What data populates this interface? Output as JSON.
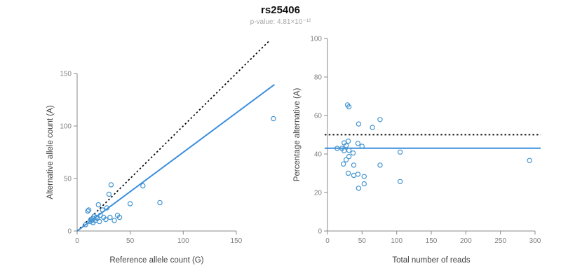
{
  "header": {
    "title": "rs25406",
    "subtitle": "p-value: 4.81×10⁻¹²"
  },
  "chart_data": [
    {
      "type": "scatter",
      "name": "allele-count-scatter",
      "xlabel": "Reference allele count (G)",
      "ylabel": "Alternative allele count (A)",
      "xlim": [
        0,
        186
      ],
      "ylim": [
        0,
        150
      ],
      "xticks": [
        0,
        50,
        100,
        150
      ],
      "yticks": [
        0,
        50,
        100,
        150
      ],
      "point_color": "#4495d1",
      "axis_color": "#888888",
      "tick_label_color": "#7f7f7f",
      "axis_label_color": "#404040",
      "points": [
        [
          8,
          6
        ],
        [
          10,
          19
        ],
        [
          11,
          20
        ],
        [
          12,
          9
        ],
        [
          13,
          11
        ],
        [
          14,
          10
        ],
        [
          15,
          12
        ],
        [
          15,
          8
        ],
        [
          16,
          14
        ],
        [
          17,
          10
        ],
        [
          18,
          13
        ],
        [
          19,
          12
        ],
        [
          20,
          25
        ],
        [
          21,
          9
        ],
        [
          22,
          15
        ],
        [
          24,
          20
        ],
        [
          25,
          13
        ],
        [
          27,
          11
        ],
        [
          28,
          22
        ],
        [
          30,
          35
        ],
        [
          31,
          13
        ],
        [
          32,
          44
        ],
        [
          35,
          10
        ],
        [
          38,
          15
        ],
        [
          40,
          13
        ],
        [
          50,
          26
        ],
        [
          62,
          43
        ],
        [
          78,
          27
        ],
        [
          185,
          107
        ]
      ],
      "lines": [
        {
          "kind": "abline",
          "name": "identity-line",
          "slope": 1,
          "intercept": 0,
          "color": "#000000",
          "dash": true
        },
        {
          "kind": "abline",
          "name": "fit-line",
          "slope": 0.75,
          "intercept": 0,
          "color": "#3b8ede",
          "dash": false
        }
      ]
    },
    {
      "type": "scatter",
      "name": "percentage-vs-reads-scatter",
      "xlabel": "Total number of reads",
      "ylabel": "Percentage alternative (A)",
      "xlim": [
        0,
        300
      ],
      "ylim": [
        0,
        100
      ],
      "xticks": [
        0,
        50,
        100,
        150,
        200,
        250,
        300
      ],
      "yticks": [
        0,
        20,
        40,
        60,
        80,
        100
      ],
      "point_color": "#4495d1",
      "axis_color": "#888888",
      "tick_label_color": "#7f7f7f",
      "axis_label_color": "#404040",
      "points": [
        [
          14,
          42.9
        ],
        [
          29,
          65.5
        ],
        [
          31,
          64.5
        ],
        [
          21,
          42.9
        ],
        [
          24,
          45.8
        ],
        [
          24,
          41.7
        ],
        [
          27,
          44.4
        ],
        [
          23,
          34.8
        ],
        [
          30,
          46.7
        ],
        [
          27,
          37.0
        ],
        [
          31,
          41.9
        ],
        [
          31,
          38.7
        ],
        [
          45,
          55.6
        ],
        [
          30,
          30.0
        ],
        [
          37,
          40.5
        ],
        [
          44,
          45.5
        ],
        [
          38,
          34.2
        ],
        [
          38,
          28.9
        ],
        [
          50,
          44.0
        ],
        [
          65,
          53.8
        ],
        [
          44,
          29.5
        ],
        [
          76,
          57.9
        ],
        [
          45,
          22.2
        ],
        [
          53,
          28.3
        ],
        [
          53,
          24.5
        ],
        [
          76,
          34.2
        ],
        [
          105,
          41.0
        ],
        [
          105,
          25.7
        ],
        [
          292,
          36.6
        ]
      ],
      "lines": [
        {
          "kind": "hline",
          "name": "expected-50pct-line",
          "y": 50,
          "color": "#000000",
          "dash": true
        },
        {
          "kind": "hline",
          "name": "mean-pct-line",
          "y": 43,
          "color": "#3b8ede",
          "dash": false
        }
      ]
    }
  ]
}
